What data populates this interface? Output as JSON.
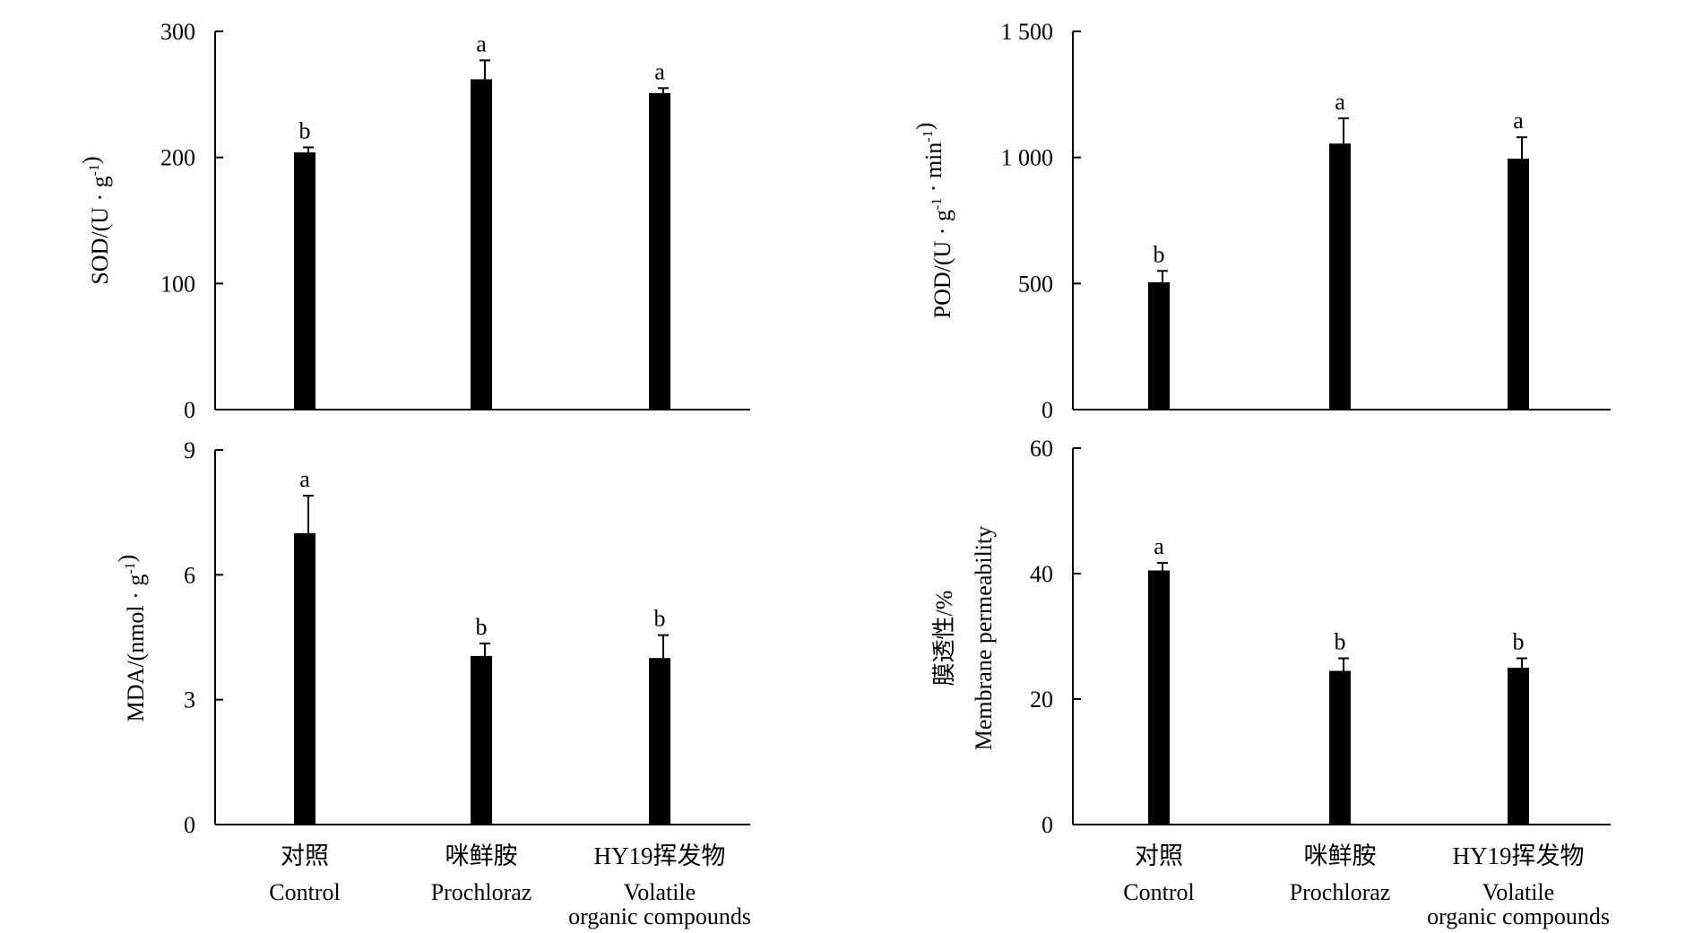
{
  "chart_data": [
    {
      "type": "bar",
      "categories": [
        {
          "zh": "对照",
          "en": [
            "Control"
          ]
        },
        {
          "zh": "咪鲜胺",
          "en": [
            "Prochloraz"
          ]
        },
        {
          "zh": "HY19挥发物",
          "en": [
            "Volatile",
            "organic compounds"
          ]
        }
      ],
      "values": [
        204,
        262,
        251
      ],
      "errors": [
        4,
        15,
        4
      ],
      "letters": [
        "b",
        "a",
        "a"
      ],
      "ylabel": {
        "parts": [
          {
            "t": "SOD/(U · g"
          },
          {
            "t": "-1",
            "sup": true
          },
          {
            "t": ")"
          }
        ]
      },
      "ylim": [
        0,
        300
      ],
      "yticks": [
        0,
        100,
        200,
        300
      ],
      "yticklabels": [
        "0",
        "100",
        "200",
        "300"
      ],
      "xlabels_shown": false,
      "bar_color": "#000000"
    },
    {
      "type": "bar",
      "categories": [
        {
          "zh": "对照",
          "en": [
            "Control"
          ]
        },
        {
          "zh": "咪鲜胺",
          "en": [
            "Prochloraz"
          ]
        },
        {
          "zh": "HY19挥发物",
          "en": [
            "Volatile",
            "organic compounds"
          ]
        }
      ],
      "values": [
        505,
        1055,
        995
      ],
      "errors": [
        45,
        100,
        85
      ],
      "letters": [
        "b",
        "a",
        "a"
      ],
      "ylabel": {
        "parts": [
          {
            "t": "POD/(U · g"
          },
          {
            "t": "-1",
            "sup": true
          },
          {
            "t": " · min"
          },
          {
            "t": "-1",
            "sup": true
          },
          {
            "t": ")"
          }
        ]
      },
      "ylim": [
        0,
        1500
      ],
      "yticks": [
        0,
        500,
        1000,
        1500
      ],
      "yticklabels": [
        "0",
        "500",
        "1 000",
        "1 500"
      ],
      "xlabels_shown": false,
      "bar_color": "#000000"
    },
    {
      "type": "bar",
      "categories": [
        {
          "zh": "对照",
          "en": [
            "Control"
          ]
        },
        {
          "zh": "咪鲜胺",
          "en": [
            "Prochloraz"
          ]
        },
        {
          "zh": "HY19挥发物",
          "en": [
            "Volatile",
            "organic compounds"
          ]
        }
      ],
      "values": [
        7.0,
        4.05,
        4.0
      ],
      "errors": [
        0.9,
        0.3,
        0.55
      ],
      "letters": [
        "a",
        "b",
        "b"
      ],
      "ylabel": {
        "parts": [
          {
            "t": "MDA/(nmol · g"
          },
          {
            "t": "-1",
            "sup": true
          },
          {
            "t": ")"
          }
        ]
      },
      "ylim": [
        0,
        9
      ],
      "yticks": [
        0,
        3,
        6,
        9
      ],
      "yticklabels": [
        "0",
        "3",
        "6",
        "9"
      ],
      "xlabels_shown": true,
      "bar_color": "#000000"
    },
    {
      "type": "bar",
      "categories": [
        {
          "zh": "对照",
          "en": [
            "Control"
          ]
        },
        {
          "zh": "咪鲜胺",
          "en": [
            "Prochloraz"
          ]
        },
        {
          "zh": "HY19挥发物",
          "en": [
            "Volatile",
            "organic compounds"
          ]
        }
      ],
      "values": [
        40.5,
        24.5,
        25.0
      ],
      "errors": [
        1.2,
        2.0,
        1.5
      ],
      "letters": [
        "a",
        "b",
        "b"
      ],
      "ylabel": {
        "parts": [
          {
            "t": "膜透性/%"
          }
        ],
        "line2": "Membrane permeability"
      },
      "ylim": [
        0,
        60
      ],
      "yticks": [
        0,
        20,
        40,
        60
      ],
      "yticklabels": [
        "0",
        "20",
        "40",
        "60"
      ],
      "xlabels_shown": true,
      "bar_color": "#000000"
    }
  ]
}
